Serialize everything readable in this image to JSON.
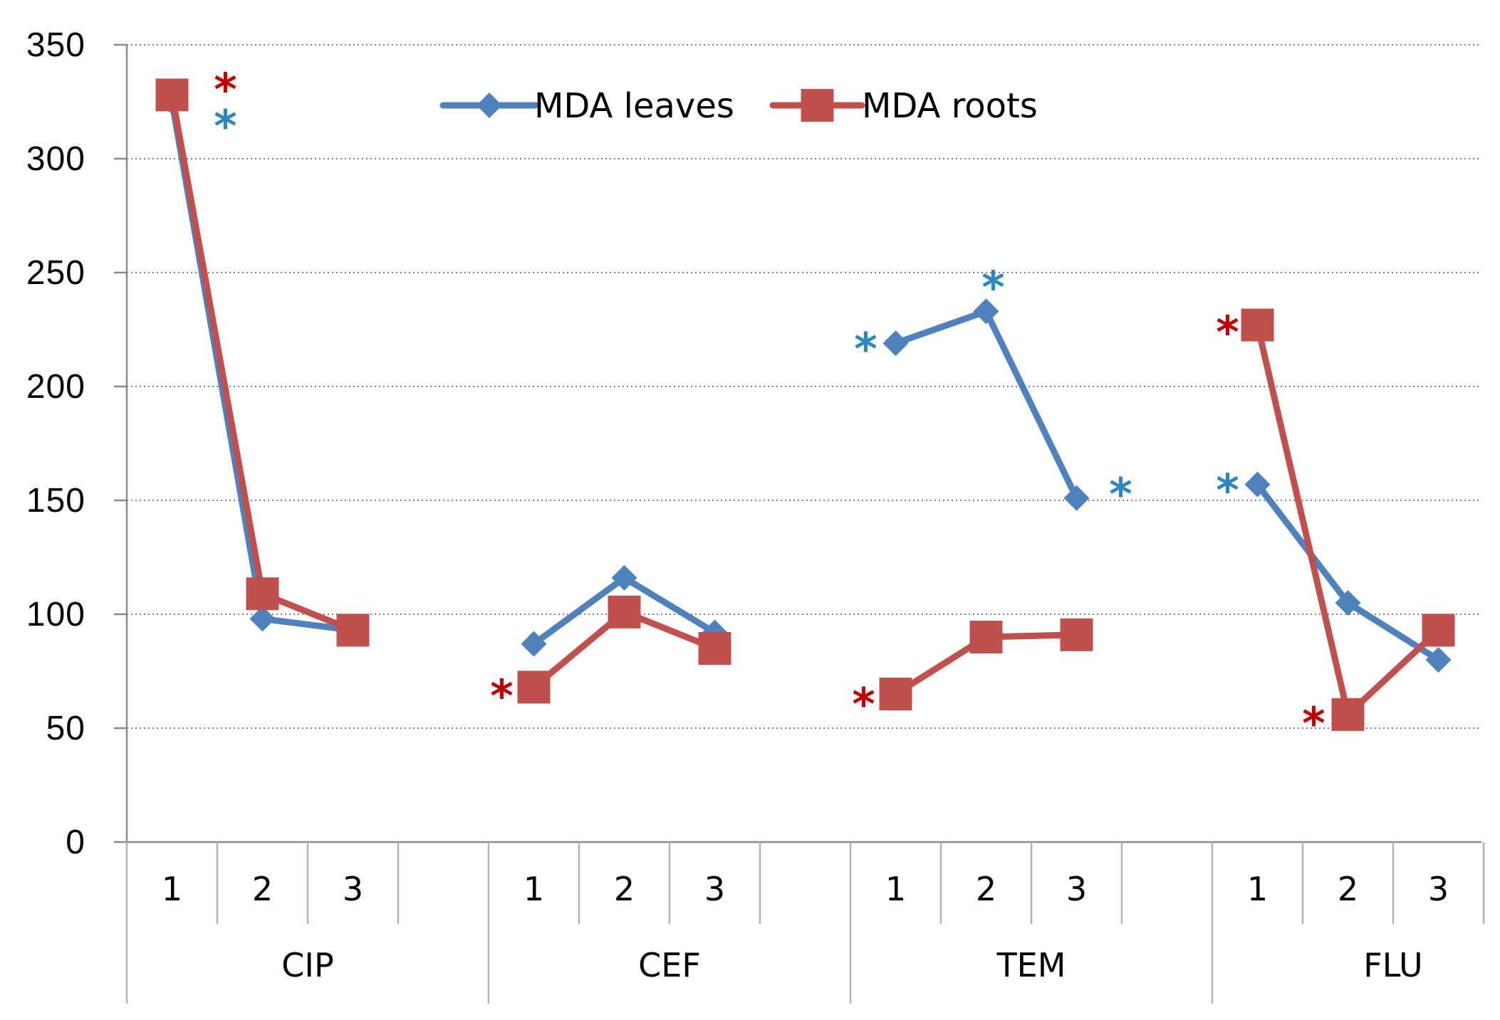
{
  "chart_data": {
    "type": "line",
    "title": "",
    "xlabel": "",
    "ylabel": "",
    "ylim": [
      0,
      350
    ],
    "yticks": [
      0,
      50,
      100,
      150,
      200,
      250,
      300,
      350
    ],
    "grid": "horizontal dotted",
    "groups": [
      {
        "name": "CIP",
        "categories": [
          "1",
          "2",
          "3"
        ]
      },
      {
        "name": "CEF",
        "categories": [
          "1",
          "2",
          "3"
        ]
      },
      {
        "name": "TEM",
        "categories": [
          "1",
          "2",
          "3"
        ]
      },
      {
        "name": "FLU",
        "categories": [
          "1",
          "2",
          "3"
        ]
      }
    ],
    "legend_position": "top-center",
    "series": [
      {
        "name": "MDA leaves",
        "color": "#4F81BD",
        "marker": "diamond",
        "values": [
          [
            325,
            98,
            93
          ],
          [
            87,
            116,
            92
          ],
          [
            219,
            233,
            151
          ],
          [
            157,
            105,
            80
          ]
        ],
        "significant": [
          [
            true,
            false,
            false
          ],
          [
            false,
            false,
            false
          ],
          [
            true,
            true,
            true
          ],
          [
            true,
            false,
            false
          ]
        ]
      },
      {
        "name": "MDA roots",
        "color": "#C0504D",
        "marker": "square",
        "values": [
          [
            328,
            109,
            93
          ],
          [
            68,
            101,
            85
          ],
          [
            65,
            90,
            91
          ],
          [
            227,
            56,
            93
          ]
        ],
        "significant": [
          [
            true,
            false,
            false
          ],
          [
            true,
            false,
            false
          ],
          [
            true,
            false,
            false
          ],
          [
            true,
            true,
            false
          ]
        ]
      }
    ],
    "annotation_symbol": "*"
  }
}
